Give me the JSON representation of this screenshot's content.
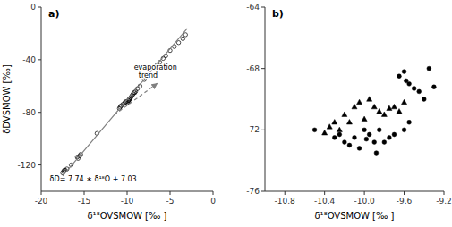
{
  "chart_data": [
    {
      "type": "scatter",
      "title": "a)",
      "xlabel": "δ¹⁸OVSMOW [‰ ]",
      "ylabel": "δDVSMOW [‰]",
      "xlim": [
        -20,
        0
      ],
      "ylim": [
        -140,
        0
      ],
      "xticks": [
        -20,
        -15,
        -10,
        -5,
        0
      ],
      "yticks": [
        -120,
        -80,
        -40,
        0
      ],
      "grid": false,
      "series": [
        {
          "type": "scatter",
          "marker": "open-circle",
          "color": "#000000",
          "x": [
            -17.5,
            -17.4,
            -17.3,
            -17.2,
            -17.0,
            -16.5,
            -15.8,
            -15.7,
            -15.5,
            -15.4,
            -13.5,
            -10.9,
            -10.8,
            -10.7,
            -10.5,
            -10.3,
            -10.2,
            -10.1,
            -10.0,
            -9.9,
            -9.85,
            -9.8,
            -9.75,
            -9.7,
            -9.6,
            -9.5,
            -9.4,
            -9.3,
            -9.2,
            -9.1,
            -9.0,
            -8.8,
            -8.5,
            -8.0,
            -7.5,
            -7.0,
            -6.5,
            -6.2,
            -5.8,
            -5.5,
            -5.0,
            -4.5,
            -4.0,
            -3.5,
            -3.2
          ],
          "values": [
            -126,
            -125,
            -124,
            -124,
            -123,
            -120,
            -114,
            -115,
            -113,
            -112,
            -96,
            -77,
            -76,
            -75,
            -74,
            -73,
            -72,
            -72,
            -73,
            -72,
            -71,
            -71,
            -70,
            -70,
            -69,
            -68,
            -67,
            -66,
            -65,
            -65,
            -64,
            -62,
            -60,
            -55,
            -51,
            -47,
            -44,
            -42,
            -39,
            -37,
            -33,
            -30,
            -27,
            -24,
            -21
          ]
        },
        {
          "type": "line",
          "line_style": "solid",
          "color": "#808080",
          "x": [
            -17.5,
            -3.0
          ],
          "values": [
            -128.42,
            -16.19
          ]
        },
        {
          "type": "line",
          "line_style": "dashed",
          "marker": "arrow",
          "color": "#808080",
          "x": [
            -11.5,
            -6.5
          ],
          "values": [
            -82,
            -58
          ]
        }
      ],
      "annotations": [
        {
          "text": "evaporation\n  trend",
          "x": -9.2,
          "y": -55
        },
        {
          "text": "δD= 7.74 ∗ δ¹⁸O + 7.03",
          "x": -19.0,
          "y": -127
        }
      ]
    },
    {
      "type": "scatter",
      "title": "b)",
      "xlabel": "δ¹⁸OVSMOW [‰ ]",
      "xlim": [
        -11.0,
        -9.2
      ],
      "ylim": [
        -76,
        -64
      ],
      "xticks": [
        -10.8,
        -10.4,
        {
          "value": -10.0,
          "label": "-10.0"
        },
        -9.6,
        -9.2
      ],
      "yticks": [
        -76,
        -72,
        -68,
        -64
      ],
      "grid": false,
      "series": [
        {
          "type": "scatter",
          "marker": "circle",
          "color": "#000000",
          "x": [
            -10.5,
            -10.3,
            -10.25,
            -10.2,
            -10.15,
            -10.1,
            -10.05,
            -10.0,
            -9.98,
            -9.95,
            -9.9,
            -9.88,
            -9.85,
            -9.8,
            -9.75,
            -9.7,
            -9.65,
            -9.6,
            -9.58,
            -9.55,
            -9.5,
            -9.45,
            -9.4,
            -9.35,
            -9.3,
            -9.6,
            -9.55
          ],
          "values": [
            -72.0,
            -72.5,
            -72.3,
            -72.8,
            -73.0,
            -72.5,
            -73.2,
            -72.0,
            -72.6,
            -72.3,
            -72.8,
            -73.5,
            -72.0,
            -72.8,
            -72.5,
            -72.3,
            -68.5,
            -68.2,
            -68.8,
            -69.0,
            -69.3,
            -69.5,
            -70.0,
            -68.0,
            -69.2,
            -72.0,
            -71.5
          ]
        },
        {
          "type": "scatter",
          "marker": "triangle",
          "color": "#000000",
          "x": [
            -10.4,
            -10.35,
            -10.3,
            -10.25,
            -10.2,
            -10.15,
            -10.1,
            -10.05,
            -10.0,
            -9.95,
            -9.9,
            -9.85,
            -9.8,
            -9.75,
            -9.7,
            -9.65,
            -9.6
          ],
          "values": [
            -72.2,
            -71.8,
            -71.5,
            -72.0,
            -71.0,
            -71.5,
            -70.5,
            -70.2,
            -71.3,
            -70.0,
            -70.5,
            -70.8,
            -71.0,
            -70.6,
            -70.5,
            -70.8,
            -70.2
          ]
        }
      ]
    }
  ]
}
